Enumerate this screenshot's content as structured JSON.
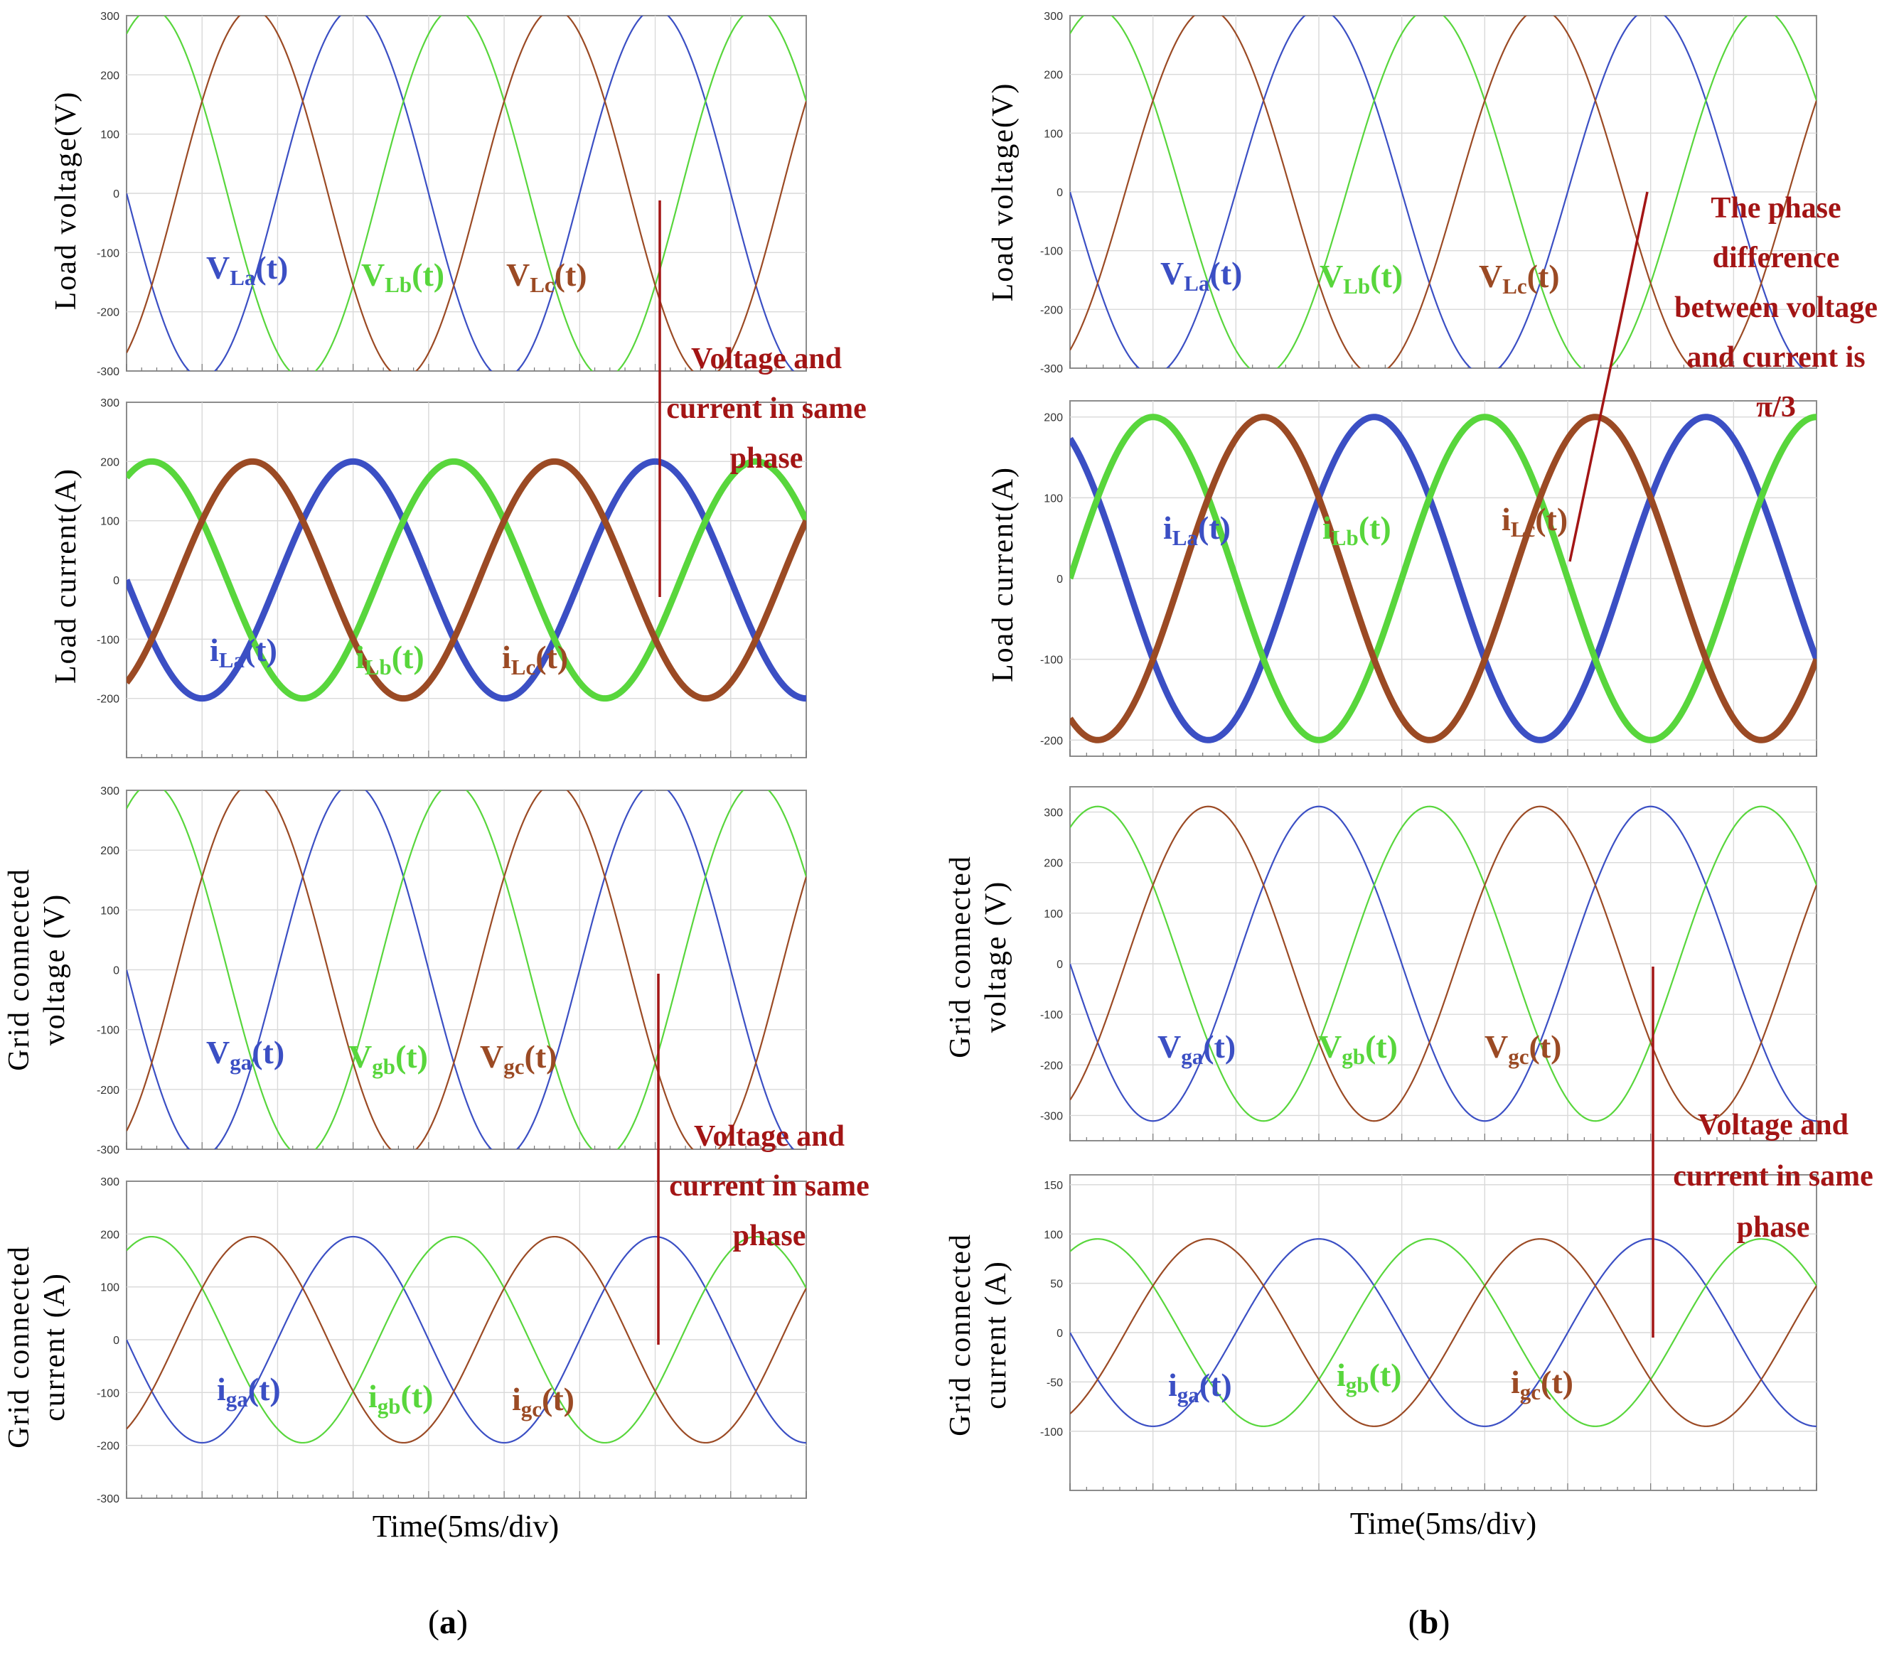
{
  "figure": {
    "x_axis_label": "Time(5ms/div)",
    "colors": {
      "a": "#3b4fc4",
      "b": "#58d63c",
      "c": "#9b4a24",
      "annotation": "#a31515"
    }
  },
  "chart_data": [
    {
      "type": "line",
      "id": "a1",
      "column": "(a)",
      "title": "",
      "ylabel": [
        "Load voltage(V)"
      ],
      "xlabel": "",
      "ylim": [
        -300,
        300
      ],
      "yticks": [
        300,
        200,
        100,
        0,
        -100,
        -200,
        -300
      ],
      "time_ms": [
        0,
        45
      ],
      "time_per_div_ms": 5,
      "frequency_hz": 50,
      "grid": true,
      "series": [
        {
          "name": "V_La(t)",
          "label_main": "V",
          "label_sub": "La",
          "label_tail": "(t)",
          "phase": "a",
          "amplitude": 311,
          "phase_offset_deg": 0,
          "line": "thin"
        },
        {
          "name": "V_Lb(t)",
          "label_main": "V",
          "label_sub": "Lb",
          "label_tail": "(t)",
          "phase": "b",
          "amplitude": 311,
          "phase_offset_deg": -120,
          "line": "thin"
        },
        {
          "name": "V_Lc(t)",
          "label_main": "V",
          "label_sub": "Lc",
          "label_tail": "(t)",
          "phase": "c",
          "amplitude": 311,
          "phase_offset_deg": 120,
          "line": "thin"
        }
      ],
      "annotation": null
    },
    {
      "type": "line",
      "id": "a2",
      "column": "(a)",
      "title": "",
      "ylabel": [
        "Load current(A)"
      ],
      "xlabel": "",
      "ylim": [
        -300,
        300
      ],
      "yticks": [
        300,
        200,
        100,
        0,
        -100,
        -200
      ],
      "time_ms": [
        0,
        45
      ],
      "time_per_div_ms": 5,
      "frequency_hz": 50,
      "grid": true,
      "series": [
        {
          "name": "i_La(t)",
          "label_main": "i",
          "label_sub": "La",
          "label_tail": "(t)",
          "phase": "a",
          "amplitude": 200,
          "phase_offset_deg": 0,
          "line": "thick"
        },
        {
          "name": "i_Lb(t)",
          "label_main": "i",
          "label_sub": "Lb",
          "label_tail": "(t)",
          "phase": "b",
          "amplitude": 200,
          "phase_offset_deg": -120,
          "line": "thick"
        },
        {
          "name": "i_Lc(t)",
          "label_main": "i",
          "label_sub": "Lc",
          "label_tail": "(t)",
          "phase": "c",
          "amplitude": 200,
          "phase_offset_deg": 120,
          "line": "thick"
        }
      ],
      "annotation": null
    },
    {
      "type": "line",
      "id": "a3",
      "column": "(a)",
      "title": "",
      "ylabel": [
        "Grid connected",
        "voltage (V)"
      ],
      "xlabel": "",
      "ylim": [
        -300,
        300
      ],
      "yticks": [
        300,
        200,
        100,
        0,
        -100,
        -200,
        -300
      ],
      "time_ms": [
        0,
        45
      ],
      "time_per_div_ms": 5,
      "frequency_hz": 50,
      "grid": true,
      "series": [
        {
          "name": "V_ga(t)",
          "label_main": "V",
          "label_sub": "ga",
          "label_tail": "(t)",
          "phase": "a",
          "amplitude": 311,
          "phase_offset_deg": 0,
          "line": "thin"
        },
        {
          "name": "V_gb(t)",
          "label_main": "V",
          "label_sub": "gb",
          "label_tail": "(t)",
          "phase": "b",
          "amplitude": 311,
          "phase_offset_deg": -120,
          "line": "thin"
        },
        {
          "name": "V_gc(t)",
          "label_main": "V",
          "label_sub": "gc",
          "label_tail": "(t)",
          "phase": "c",
          "amplitude": 311,
          "phase_offset_deg": 120,
          "line": "thin"
        }
      ],
      "annotation": null
    },
    {
      "type": "line",
      "id": "a4",
      "column": "(a)",
      "title": "",
      "ylabel": [
        "Grid connected",
        "current (A)"
      ],
      "xlabel": "Time(5ms/div)",
      "ylim": [
        -300,
        300
      ],
      "yticks": [
        300,
        200,
        100,
        0,
        -100,
        -200,
        -300
      ],
      "time_ms": [
        0,
        45
      ],
      "time_per_div_ms": 5,
      "frequency_hz": 50,
      "grid": true,
      "series": [
        {
          "name": "i_ga(t)",
          "label_main": "i",
          "label_sub": "ga",
          "label_tail": "(t)",
          "phase": "a",
          "amplitude": 195,
          "phase_offset_deg": 0,
          "line": "thin"
        },
        {
          "name": "i_gb(t)",
          "label_main": "i",
          "label_sub": "gb",
          "label_tail": "(t)",
          "phase": "b",
          "amplitude": 195,
          "phase_offset_deg": -120,
          "line": "thin"
        },
        {
          "name": "i_gc(t)",
          "label_main": "i",
          "label_sub": "gc",
          "label_tail": "(t)",
          "phase": "c",
          "amplitude": 195,
          "phase_offset_deg": 120,
          "line": "thin"
        }
      ],
      "annotation": null
    },
    {
      "type": "line",
      "id": "b1",
      "column": "(b)",
      "title": "",
      "ylabel": [
        "Load voltage(V)"
      ],
      "xlabel": "",
      "ylim": [
        -300,
        300
      ],
      "yticks": [
        300,
        200,
        100,
        0,
        -100,
        -200,
        -300
      ],
      "time_ms": [
        0,
        45
      ],
      "time_per_div_ms": 5,
      "frequency_hz": 50,
      "grid": true,
      "series": [
        {
          "name": "V_La(t)",
          "label_main": "V",
          "label_sub": "La",
          "label_tail": "(t)",
          "phase": "a",
          "amplitude": 311,
          "phase_offset_deg": 0,
          "line": "thin"
        },
        {
          "name": "V_Lb(t)",
          "label_main": "V",
          "label_sub": "Lb",
          "label_tail": "(t)",
          "phase": "b",
          "amplitude": 311,
          "phase_offset_deg": -120,
          "line": "thin"
        },
        {
          "name": "V_Lc(t)",
          "label_main": "V",
          "label_sub": "Lc",
          "label_tail": "(t)",
          "phase": "c",
          "amplitude": 311,
          "phase_offset_deg": 120,
          "line": "thin"
        }
      ],
      "annotation": null
    },
    {
      "type": "line",
      "id": "b2",
      "column": "(b)",
      "title": "",
      "ylabel": [
        "Load current(A)"
      ],
      "xlabel": "",
      "ylim": [
        -220,
        220
      ],
      "yticks": [
        200,
        100,
        0,
        -100,
        -200
      ],
      "time_ms": [
        0,
        45
      ],
      "time_per_div_ms": 5,
      "frequency_hz": 50,
      "grid": true,
      "series": [
        {
          "name": "i_La(t)",
          "label_main": "i",
          "label_sub": "La",
          "label_tail": "(t)",
          "phase": "a",
          "amplitude": 200,
          "phase_offset_deg": -60,
          "line": "thick"
        },
        {
          "name": "i_Lb(t)",
          "label_main": "i",
          "label_sub": "Lb",
          "label_tail": "(t)",
          "phase": "b",
          "amplitude": 200,
          "phase_offset_deg": -180,
          "line": "thick"
        },
        {
          "name": "i_Lc(t)",
          "label_main": "i",
          "label_sub": "Lc",
          "label_tail": "(t)",
          "phase": "c",
          "amplitude": 200,
          "phase_offset_deg": 60,
          "line": "thick"
        }
      ],
      "annotation": null
    },
    {
      "type": "line",
      "id": "b3",
      "column": "(b)",
      "title": "",
      "ylabel": [
        "Grid connected",
        "voltage (V)"
      ],
      "xlabel": "",
      "ylim": [
        -350,
        350
      ],
      "yticks": [
        300,
        200,
        100,
        0,
        -100,
        -200,
        -300
      ],
      "time_ms": [
        0,
        45
      ],
      "time_per_div_ms": 5,
      "frequency_hz": 50,
      "grid": true,
      "series": [
        {
          "name": "V_ga(t)",
          "label_main": "V",
          "label_sub": "ga",
          "label_tail": "(t)",
          "phase": "a",
          "amplitude": 311,
          "phase_offset_deg": 0,
          "line": "thin"
        },
        {
          "name": "V_gb(t)",
          "label_main": "V",
          "label_sub": "gb",
          "label_tail": "(t)",
          "phase": "b",
          "amplitude": 311,
          "phase_offset_deg": -120,
          "line": "thin"
        },
        {
          "name": "V_gc(t)",
          "label_main": "V",
          "label_sub": "gc",
          "label_tail": "(t)",
          "phase": "c",
          "amplitude": 311,
          "phase_offset_deg": 120,
          "line": "thin"
        }
      ],
      "annotation": null
    },
    {
      "type": "line",
      "id": "b4",
      "column": "(b)",
      "title": "",
      "ylabel": [
        "Grid connected",
        "current (A)"
      ],
      "xlabel": "Time(5ms/div)",
      "ylim": [
        -160,
        160
      ],
      "yticks": [
        150,
        100,
        50,
        0,
        -50,
        -100
      ],
      "time_ms": [
        0,
        45
      ],
      "time_per_div_ms": 5,
      "frequency_hz": 50,
      "grid": true,
      "series": [
        {
          "name": "i_ga(t)",
          "label_main": "i",
          "label_sub": "ga",
          "label_tail": "(t)",
          "phase": "a",
          "amplitude": 95,
          "phase_offset_deg": 0,
          "line": "thin"
        },
        {
          "name": "i_gb(t)",
          "label_main": "i",
          "label_sub": "gb",
          "label_tail": "(t)",
          "phase": "b",
          "amplitude": 95,
          "phase_offset_deg": -120,
          "line": "thin"
        },
        {
          "name": "i_gc(t)",
          "label_main": "i",
          "label_sub": "gc",
          "label_tail": "(t)",
          "phase": "c",
          "amplitude": 95,
          "phase_offset_deg": 120,
          "line": "thin"
        }
      ],
      "annotation": null
    }
  ],
  "annotations": [
    {
      "id": "ann-a-top",
      "lines": [
        "Voltage and",
        "current in same",
        "phase"
      ]
    },
    {
      "id": "ann-a-bottom",
      "lines": [
        "Voltage and",
        "current in same",
        "phase"
      ]
    },
    {
      "id": "ann-b-top",
      "lines": [
        "The phase",
        "difference",
        "between voltage",
        "and current is",
        "π/3"
      ]
    },
    {
      "id": "ann-b-bottom",
      "lines": [
        "Voltage and",
        "current in same",
        "phase"
      ]
    }
  ],
  "subfigure_labels": [
    {
      "id": "a",
      "open": "(",
      "letter": "a",
      "close": ")"
    },
    {
      "id": "b",
      "open": "(",
      "letter": "b",
      "close": ")"
    }
  ]
}
